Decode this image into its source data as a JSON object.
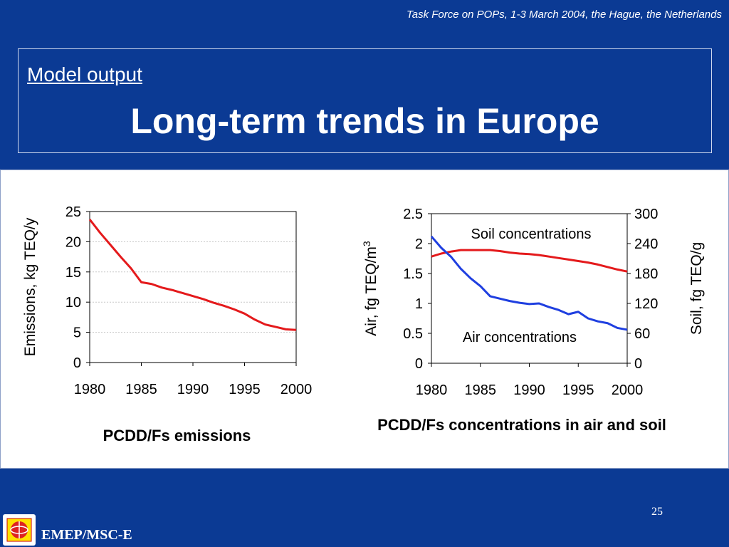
{
  "header": {
    "note": "Task Force on POPs, 1-3 March 2004, the Hague, the Netherlands",
    "subtitle": "Model output",
    "title": "Long-term trends in Europe"
  },
  "footer": {
    "page_number": "25",
    "logo_label": "EMEP/MSC-E"
  },
  "colors": {
    "background": "#0b3a94",
    "red_series": "#e41a1c",
    "blue_series": "#1f3fe0"
  },
  "chart_data": [
    {
      "type": "line",
      "title": "PCDD/Fs emissions",
      "xlabel": "",
      "ylabel": "Emissions, kg TEQ/y",
      "xlim": [
        1980,
        2000
      ],
      "ylim": [
        0,
        25
      ],
      "xticks": [
        "1980",
        "1985",
        "1990",
        "1995",
        "2000"
      ],
      "yticks": [
        "0",
        "5",
        "10",
        "15",
        "20",
        "25"
      ],
      "grid": true,
      "series": [
        {
          "name": "",
          "color": "#e41a1c",
          "x": [
            1980,
            1981,
            1982,
            1983,
            1984,
            1985,
            1986,
            1987,
            1988,
            1989,
            1990,
            1991,
            1992,
            1993,
            1994,
            1995,
            1996,
            1997,
            1998,
            1999,
            2000
          ],
          "y": [
            23.7,
            21.5,
            19.5,
            17.5,
            15.6,
            13.3,
            13.0,
            12.4,
            12.0,
            11.5,
            11.0,
            10.5,
            9.9,
            9.4,
            8.8,
            8.1,
            7.1,
            6.3,
            5.9,
            5.5,
            5.4
          ]
        }
      ]
    },
    {
      "type": "line",
      "title": "PCDD/Fs concentrations in air and soil",
      "xlabel": "",
      "ylabel": "Air,  fg TEQ/m",
      "ylabel_sup": "3",
      "y2label": "Soil, fg TEQ/g",
      "xlim": [
        1980,
        2000
      ],
      "ylim": [
        0,
        2.5
      ],
      "y2lim": [
        0,
        300
      ],
      "xticks": [
        "1980",
        "1985",
        "1990",
        "1995",
        "2000"
      ],
      "yticks": [
        "0",
        "0.5",
        "1",
        "1.5",
        "2",
        "2.5"
      ],
      "y2ticks": [
        "0",
        "60",
        "120",
        "180",
        "240",
        "300"
      ],
      "grid": false,
      "annotations": [
        "Soil concentrations",
        "Air concentrations"
      ],
      "series": [
        {
          "name": "Soil concentrations",
          "axis": "right",
          "color": "#e41a1c",
          "x": [
            1980,
            1981,
            1982,
            1983,
            1984,
            1985,
            1986,
            1987,
            1988,
            1989,
            1990,
            1991,
            1992,
            1993,
            1994,
            1995,
            1996,
            1997,
            1998,
            1999,
            2000
          ],
          "y": [
            214,
            220,
            224,
            227,
            227,
            227,
            227,
            225,
            222,
            220,
            219,
            217,
            214,
            211,
            208,
            205,
            202,
            198,
            193,
            188,
            184
          ]
        },
        {
          "name": "Air concentrations",
          "axis": "left",
          "color": "#1f3fe0",
          "x": [
            1980,
            1981,
            1982,
            1983,
            1984,
            1985,
            1986,
            1987,
            1988,
            1989,
            1990,
            1991,
            1992,
            1993,
            1994,
            1995,
            1996,
            1997,
            1998,
            1999,
            2000
          ],
          "y": [
            2.12,
            1.93,
            1.78,
            1.58,
            1.42,
            1.29,
            1.12,
            1.08,
            1.04,
            1.01,
            0.99,
            1.0,
            0.94,
            0.89,
            0.82,
            0.86,
            0.75,
            0.7,
            0.67,
            0.59,
            0.56
          ]
        }
      ]
    }
  ]
}
